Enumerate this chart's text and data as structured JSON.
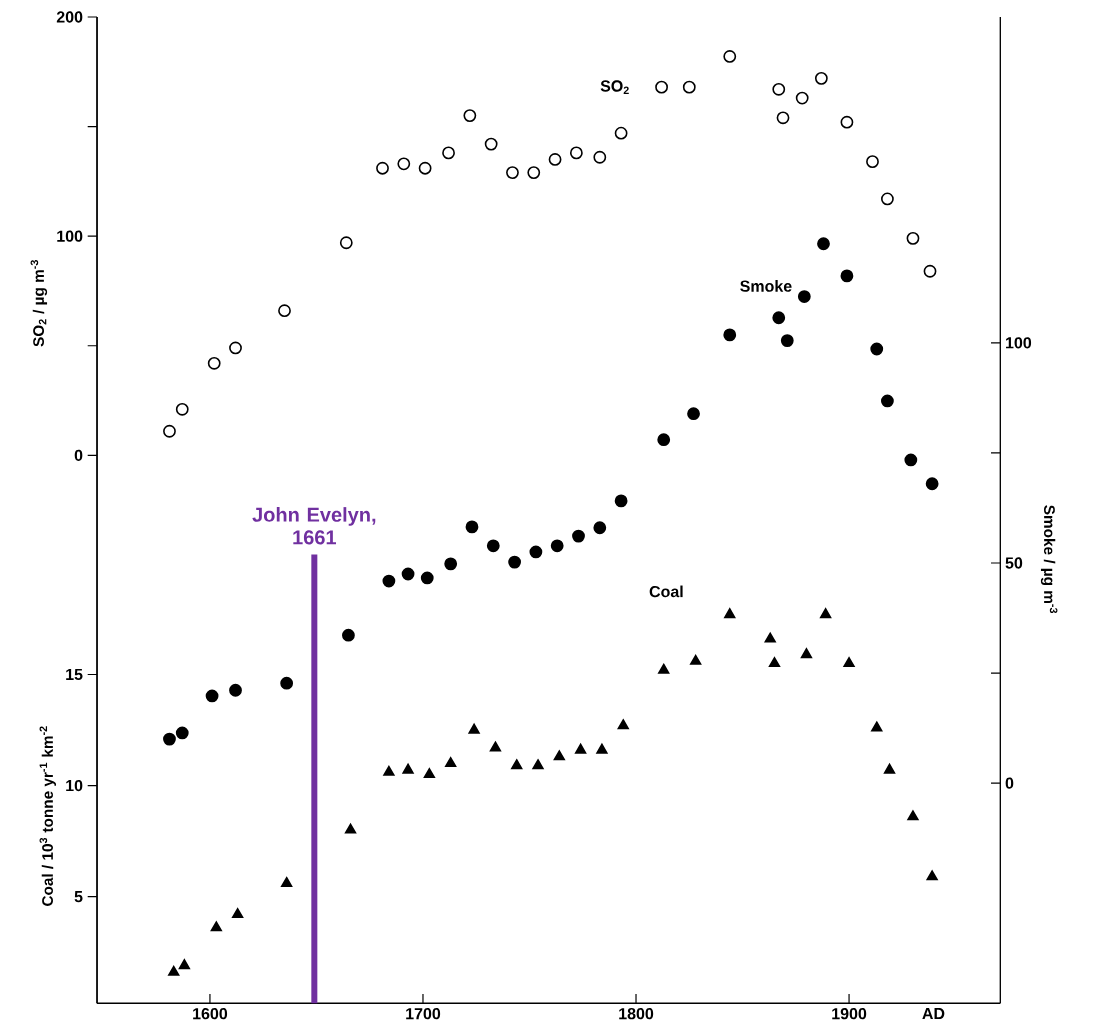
{
  "chart_data": {
    "type": "scatter",
    "xlabel": "AD",
    "ylabel": "SO$_{2}$ / µg m$^{-3}$",
    "y3label": "Coal / 10$^{3}$ tonne yr$^{-1}$ km$^{-2}$",
    "y2label": "Smoke / µg m$^{-3}$",
    "xlim": [
      1547,
      1971
    ],
    "xticks": [
      1600,
      1700,
      1800,
      1900
    ],
    "ylim": [
      -250,
      200
    ],
    "yticks": [
      0,
      {
        "value": 50,
        "label": null
      },
      100,
      {
        "value": 150,
        "label": null
      },
      200
    ],
    "y3lim": [
      0.2,
      44.6
    ],
    "y3ticks": [
      5,
      10,
      15
    ],
    "y2lim": [
      -50,
      174
    ],
    "y2ticks": [
      0,
      {
        "value": 25,
        "label": null
      },
      50,
      {
        "value": 75,
        "label": null
      },
      100
    ],
    "ref_lines": [
      {
        "axis": "x",
        "value": 1649,
        "label": "John Evelyn, 1661",
        "color": "#7030a0"
      }
    ],
    "series": [
      {
        "name": "SO$_{2}$",
        "color": "#000000",
        "marker": "circle",
        "axis": "y",
        "x": [
          1581,
          1587,
          1602,
          1612,
          1635,
          1664,
          1681,
          1691,
          1701,
          1712,
          1722,
          1732,
          1742,
          1752,
          1762,
          1772,
          1783,
          1793,
          1812,
          1825,
          1844,
          1867,
          1869,
          1878,
          1887,
          1899,
          1911,
          1918,
          1930,
          1938
        ],
        "values": [
          11,
          21,
          42,
          49,
          66,
          97,
          131,
          133,
          131,
          138,
          155,
          142,
          129,
          129,
          135,
          138,
          136,
          147,
          168,
          168,
          182,
          167,
          154,
          163,
          172,
          152,
          134,
          117,
          99,
          84
        ]
      },
      {
        "name": "Smoke",
        "color": "#000000",
        "marker": "circle",
        "axis": "y2",
        "x": [
          1581,
          1587,
          1601,
          1612,
          1636,
          1665,
          1684,
          1693,
          1702,
          1713,
          1723,
          1733,
          1743,
          1753,
          1763,
          1773,
          1783,
          1793,
          1813,
          1827,
          1844,
          1867,
          1871,
          1879,
          1888,
          1899,
          1913,
          1918,
          1929,
          1939
        ],
        "values": [
          10,
          11.4,
          19.8,
          21.1,
          22.7,
          33.6,
          45.9,
          47.5,
          46.6,
          49.8,
          58.2,
          53.9,
          50.2,
          52.5,
          53.9,
          56.1,
          58,
          64.1,
          78,
          83.9,
          101.8,
          105.7,
          100.5,
          110.5,
          122.5,
          115.2,
          98.6,
          86.8,
          73.4,
          68
        ]
      },
      {
        "name": "Coal",
        "color": "#000000",
        "marker": "triangle",
        "axis": "y3",
        "x": [
          1583,
          1588,
          1603,
          1613,
          1636,
          1666,
          1684,
          1693,
          1703,
          1713,
          1724,
          1734,
          1744,
          1754,
          1764,
          1774,
          1784,
          1794,
          1813,
          1828,
          1844,
          1863,
          1865,
          1880,
          1889,
          1900,
          1913,
          1919,
          1930,
          1939
        ],
        "values": [
          1.6,
          1.9,
          3.6,
          4.2,
          5.6,
          8.0,
          10.6,
          10.7,
          10.5,
          11.0,
          12.5,
          11.7,
          10.9,
          10.9,
          11.3,
          11.6,
          11.6,
          12.7,
          15.2,
          15.6,
          17.7,
          16.6,
          15.5,
          15.9,
          17.7,
          15.5,
          12.6,
          10.7,
          8.6,
          5.9
        ]
      }
    ]
  }
}
